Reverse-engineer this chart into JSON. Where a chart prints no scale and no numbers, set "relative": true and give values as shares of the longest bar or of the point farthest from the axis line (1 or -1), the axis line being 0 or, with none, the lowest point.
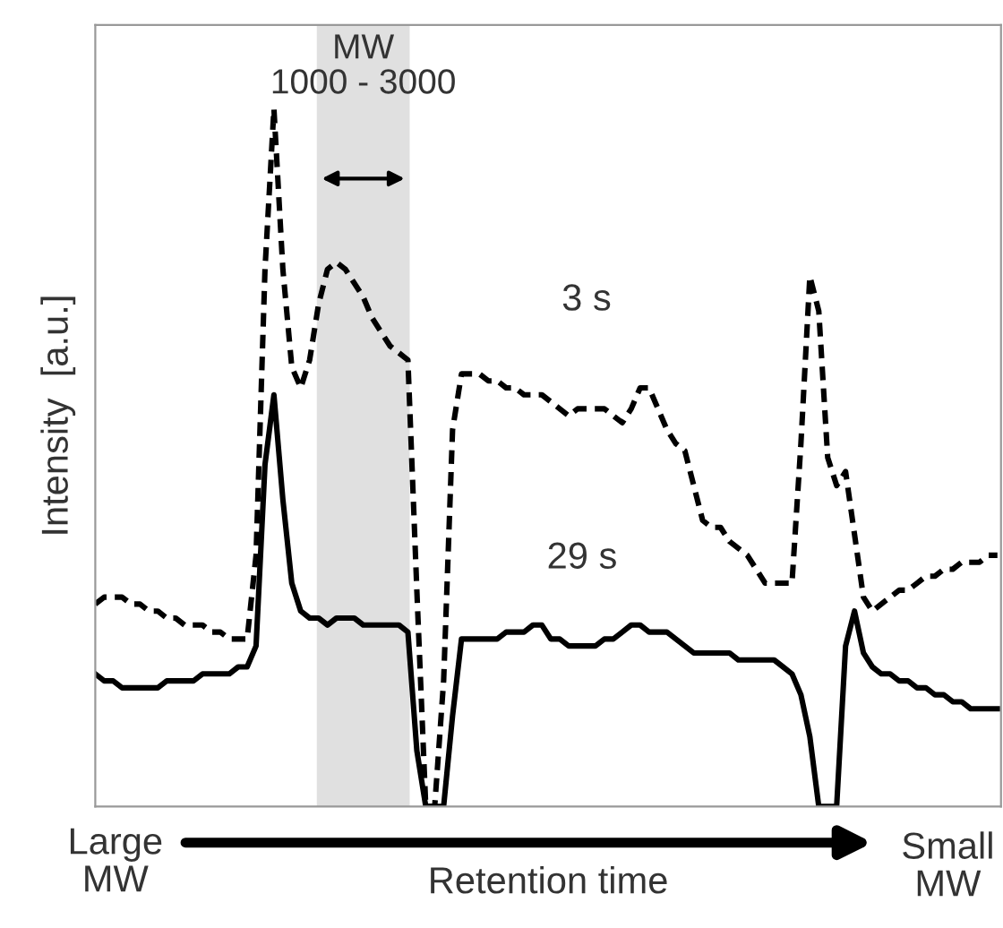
{
  "chart_data": {
    "type": "line",
    "relative": true,
    "ylabel": "Intensity  [a.u.]",
    "xlabel": "Retention time",
    "marker": "none",
    "categories": [
      null,
      null,
      null,
      null,
      null,
      null,
      null,
      null,
      null,
      null,
      null,
      null,
      null,
      null,
      null,
      null,
      null,
      null,
      null,
      null,
      null,
      null,
      null,
      null,
      null,
      null,
      null,
      null,
      null,
      null,
      null,
      null,
      null,
      null,
      null,
      null,
      null,
      null,
      null,
      null,
      null,
      null,
      null,
      null,
      null,
      null,
      null,
      null,
      null,
      null,
      null,
      null,
      null,
      null,
      null,
      null,
      null,
      null,
      null,
      null,
      null,
      null,
      null,
      null,
      null,
      null,
      null,
      null,
      null,
      null,
      null,
      null,
      null,
      null,
      null,
      null,
      null,
      null,
      null,
      null,
      null,
      null,
      null,
      null,
      null,
      null,
      null,
      null,
      null,
      null,
      null,
      null,
      null,
      null,
      null,
      null,
      null,
      null,
      null,
      null,
      null,
      null
    ],
    "series": [
      {
        "name": "3 s",
        "color": "#000000",
        "line_style": "dashed",
        "values": [
          0.29,
          0.3,
          0.3,
          0.3,
          0.29,
          0.29,
          0.28,
          0.28,
          0.27,
          0.27,
          0.26,
          0.26,
          0.26,
          0.25,
          0.25,
          0.24,
          0.24,
          0.24,
          0.36,
          0.77,
          1.0,
          0.77,
          0.63,
          0.6,
          0.64,
          0.72,
          0.77,
          0.78,
          0.77,
          0.75,
          0.73,
          0.7,
          0.68,
          0.66,
          0.65,
          0.64,
          0.31,
          0,
          0,
          0.18,
          0.54,
          0.62,
          0.62,
          0.62,
          0.61,
          0.61,
          0.6,
          0.6,
          0.59,
          0.59,
          0.59,
          0.58,
          0.57,
          0.56,
          0.57,
          0.57,
          0.57,
          0.57,
          0.56,
          0.55,
          0.57,
          0.6,
          0.6,
          0.57,
          0.54,
          0.52,
          0.51,
          0.46,
          0.41,
          0.4,
          0.4,
          0.38,
          0.37,
          0.36,
          0.34,
          0.32,
          0.32,
          0.32,
          0.32,
          0.52,
          0.76,
          0.71,
          0.5,
          0.46,
          0.48,
          0.39,
          0.3,
          0.28,
          0.29,
          0.3,
          0.31,
          0.31,
          0.32,
          0.33,
          0.33,
          0.34,
          0.34,
          0.35,
          0.35,
          0.35,
          0.36,
          0.36
        ]
      },
      {
        "name": "29 s",
        "color": "#000000",
        "line_style": "solid",
        "values": [
          0.19,
          0.18,
          0.18,
          0.17,
          0.17,
          0.17,
          0.17,
          0.17,
          0.18,
          0.18,
          0.18,
          0.18,
          0.19,
          0.19,
          0.19,
          0.19,
          0.2,
          0.2,
          0.23,
          0.49,
          0.59,
          0.44,
          0.32,
          0.28,
          0.27,
          0.27,
          0.26,
          0.27,
          0.27,
          0.27,
          0.26,
          0.26,
          0.26,
          0.26,
          0.26,
          0.25,
          0.08,
          0,
          0,
          0,
          0.13,
          0.24,
          0.24,
          0.24,
          0.24,
          0.24,
          0.25,
          0.25,
          0.25,
          0.26,
          0.26,
          0.24,
          0.24,
          0.23,
          0.23,
          0.23,
          0.23,
          0.24,
          0.24,
          0.25,
          0.26,
          0.26,
          0.25,
          0.25,
          0.25,
          0.24,
          0.23,
          0.22,
          0.22,
          0.22,
          0.22,
          0.22,
          0.21,
          0.21,
          0.21,
          0.21,
          0.21,
          0.2,
          0.19,
          0.16,
          0.1,
          0,
          0,
          0,
          0.23,
          0.28,
          0.22,
          0.2,
          0.19,
          0.19,
          0.18,
          0.18,
          0.17,
          0.17,
          0.16,
          0.16,
          0.15,
          0.15,
          0.14,
          0.14,
          0.14,
          0.14
        ]
      }
    ],
    "annotations": [
      "Large\nMW",
      "Small\nMW",
      "MW\n1000 - 3000"
    ]
  }
}
